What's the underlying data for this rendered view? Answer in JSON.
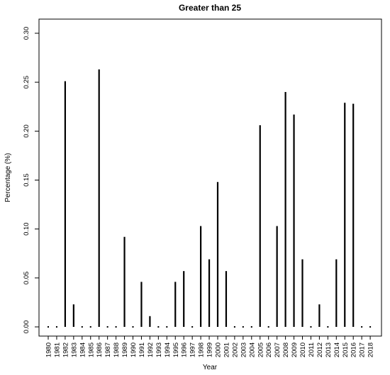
{
  "chart_data": {
    "type": "bar",
    "title": "Greater than 25",
    "xlabel": "Year",
    "ylabel": "Percentage (%)",
    "ylim": [
      0,
      0.3
    ],
    "yticks": [
      "0.00",
      "0.05",
      "0.10",
      "0.15",
      "0.20",
      "0.25",
      "0.30"
    ],
    "grid": false,
    "categories": [
      "1980",
      "1981",
      "1982",
      "1983",
      "1984",
      "1985",
      "1986",
      "1987",
      "1988",
      "1989",
      "1990",
      "1991",
      "1992",
      "1993",
      "1994",
      "1995",
      "1996",
      "1997",
      "1998",
      "1999",
      "2000",
      "2001",
      "2002",
      "2003",
      "2004",
      "2005",
      "2006",
      "2007",
      "2008",
      "2009",
      "2010",
      "2011",
      "2012",
      "2013",
      "2014",
      "2015",
      "2016",
      "2017",
      "2018"
    ],
    "values": [
      0,
      0,
      0.251,
      0.023,
      0,
      0,
      0.263,
      0,
      0,
      0.092,
      0,
      0.046,
      0.011,
      0,
      0,
      0.046,
      0.057,
      0,
      0.103,
      0.069,
      0.148,
      0.057,
      0,
      0,
      0,
      0.206,
      0,
      0.103,
      0.24,
      0.217,
      0.069,
      0,
      0.023,
      0,
      0.069,
      0.229,
      0.228,
      0,
      0
    ],
    "bar_color": "#000000"
  }
}
